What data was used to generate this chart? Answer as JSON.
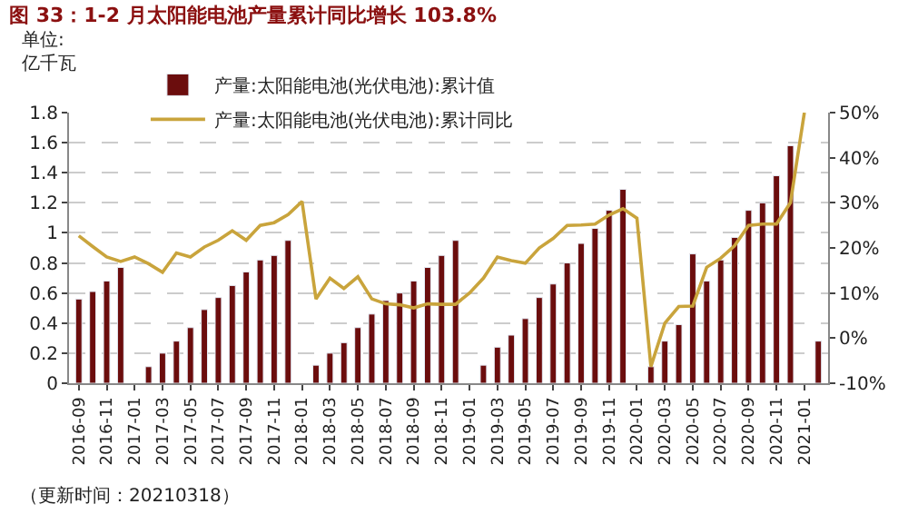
{
  "chart_data": {
    "type": "bar",
    "title": "图 33：1-2 月太阳能电池产量累计同比增长 103.8%",
    "ylabel": "单位:\n亿千瓦",
    "annotations": [
      "（更新时间：20210318）"
    ],
    "categories": [
      "2016-09",
      null,
      "2016-11",
      null,
      "2017-01",
      null,
      "2017-03",
      null,
      "2017-05",
      null,
      "2017-07",
      null,
      "2017-09",
      null,
      "2017-11",
      null,
      "2018-01",
      null,
      "2018-03",
      null,
      "2018-05",
      null,
      "2018-07",
      null,
      "2018-09",
      null,
      "2018-11",
      null,
      "2019-01",
      null,
      "2019-03",
      null,
      "2019-05",
      null,
      "2019-07",
      null,
      "2019-09",
      null,
      "2019-11",
      null,
      "2020-01",
      null,
      "2020-03",
      null,
      "2020-05",
      null,
      "2020-07",
      null,
      "2020-09",
      null,
      "2020-11",
      null,
      "2021-01",
      null
    ],
    "series": [
      {
        "name": "产量:太阳能电池(光伏电池):累计值",
        "color": "#6b0d0d",
        "values": [
          0.56,
          0.61,
          0.68,
          0.77,
          null,
          0.11,
          0.2,
          0.28,
          0.37,
          0.49,
          0.57,
          0.65,
          0.74,
          0.82,
          0.85,
          0.95,
          null,
          0.12,
          0.2,
          0.27,
          0.37,
          0.46,
          0.55,
          0.6,
          0.68,
          0.77,
          0.85,
          0.95,
          null,
          0.12,
          0.24,
          0.32,
          0.43,
          0.57,
          0.66,
          0.8,
          0.93,
          1.03,
          1.15,
          1.29,
          null,
          0.11,
          0.28,
          0.39,
          0.86,
          0.68,
          0.82,
          0.97,
          1.15,
          1.2,
          1.38,
          1.58,
          null,
          0.28
        ]
      },
      {
        "name": "产量:太阳能电池(光伏电池):累计同比",
        "type": "line",
        "axis": "y2",
        "color": "#c9a43c",
        "values": [
          22.7,
          20.3,
          18,
          17,
          18,
          16.5,
          14.6,
          18.9,
          18,
          20.2,
          21.7,
          23.8,
          21.7,
          25,
          25.6,
          27.4,
          30.3,
          8.7,
          13.3,
          11,
          13.6,
          8.7,
          7.6,
          7.4,
          6.7,
          7.6,
          7.5,
          7.5,
          10,
          13.3,
          18,
          17.2,
          16.6,
          20,
          22.1,
          25,
          25.1,
          25.3,
          27.3,
          28.7,
          26.6,
          -6.3,
          3.3,
          7,
          7.1,
          15.7,
          17.7,
          20.5,
          25,
          25.3,
          25.3,
          30,
          50,
          null
        ]
      }
    ],
    "ylim": [
      0,
      1.8
    ],
    "yticks": [
      0,
      0.2,
      0.4,
      0.6,
      0.8,
      1,
      1.2,
      1.4,
      1.6,
      1.8
    ],
    "y2lim": [
      -10,
      50
    ],
    "y2ticks": [
      {
        "value": -10,
        "label": "-10%"
      },
      {
        "value": 0,
        "label": "0%"
      },
      {
        "value": 10,
        "label": "10%"
      },
      {
        "value": 20,
        "label": "20%"
      },
      {
        "value": 30,
        "label": "30%"
      },
      {
        "value": 40,
        "label": "40%"
      },
      {
        "value": 50,
        "label": "50%"
      }
    ],
    "grid": "y",
    "legend": "top",
    "line_style": "solid",
    "marker": "none"
  }
}
